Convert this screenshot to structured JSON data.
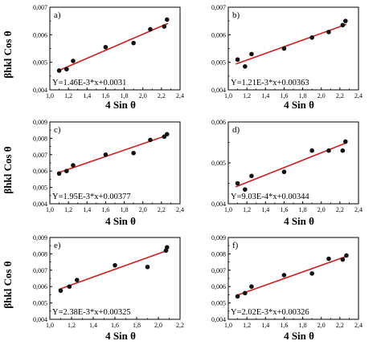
{
  "figure": {
    "ylabel": "βhkl Cos θ",
    "xlabel": "4 Sin θ"
  },
  "colors": {
    "fit_line": "#cc1f1f",
    "points": "#111111",
    "axes": "#000000"
  },
  "chart_data": [
    {
      "type": "scatter",
      "panel": "a)",
      "equation": "Y=1.46E-3*x+0.0031",
      "xlim": [
        1.0,
        2.4
      ],
      "ylim": [
        0.004,
        0.007
      ],
      "xticks": [
        "1,0",
        "1,2",
        "1,4",
        "1,6",
        "1,8",
        "2,0",
        "2,2",
        "2,4"
      ],
      "yticks": [
        "0,004",
        "0,005",
        "0,006",
        "0,007"
      ],
      "x": [
        1.1,
        1.18,
        1.25,
        1.6,
        1.9,
        2.08,
        2.23,
        2.26
      ],
      "y": [
        0.0047,
        0.00475,
        0.00505,
        0.00555,
        0.0057,
        0.0062,
        0.0063,
        0.00655
      ],
      "fit": {
        "slope": 0.00146,
        "intercept": 0.0031
      }
    },
    {
      "type": "scatter",
      "panel": "b)",
      "equation": "Y=1.21E-3*x+0.00363",
      "xlim": [
        1.0,
        2.4
      ],
      "ylim": [
        0.004,
        0.007
      ],
      "xticks": [
        "1,0",
        "1,2",
        "1,4",
        "1,6",
        "1,8",
        "2,0",
        "2,2",
        "2,4"
      ],
      "yticks": [
        "0,004",
        "0,005",
        "0,006",
        "0,007"
      ],
      "x": [
        1.1,
        1.18,
        1.25,
        1.6,
        1.9,
        2.08,
        2.23,
        2.26
      ],
      "y": [
        0.0051,
        0.00485,
        0.0053,
        0.0055,
        0.0059,
        0.0061,
        0.00635,
        0.0065
      ],
      "fit": {
        "slope": 0.00121,
        "intercept": 0.00363
      }
    },
    {
      "type": "scatter",
      "panel": "c)",
      "equation": "Y=1.95E-3*x+0.00377",
      "xlim": [
        1.0,
        2.4
      ],
      "ylim": [
        0.004,
        0.009
      ],
      "xticks": [
        "1,0",
        "1,2",
        "1,4",
        "1,6",
        "1,8",
        "2,0",
        "2,2",
        "2,4"
      ],
      "yticks": [
        "0,004",
        "0,005",
        "0,006",
        "0,007",
        "0,008",
        "0,009"
      ],
      "x": [
        1.1,
        1.18,
        1.25,
        1.6,
        1.9,
        2.08,
        2.23,
        2.26
      ],
      "y": [
        0.00585,
        0.006,
        0.00635,
        0.007,
        0.0071,
        0.0079,
        0.0081,
        0.00825
      ],
      "fit": {
        "slope": 0.00195,
        "intercept": 0.00377
      }
    },
    {
      "type": "scatter",
      "panel": "d)",
      "equation": "Y=9.03E-4*x+0.00344",
      "xlim": [
        1.0,
        2.4
      ],
      "ylim": [
        0.004,
        0.006
      ],
      "xticks": [
        "1,0",
        "1,2",
        "1,4",
        "1,6",
        "1,8",
        "2,0",
        "2,2",
        "2,4"
      ],
      "yticks": [
        "0,004",
        "0,005",
        "0,006"
      ],
      "x": [
        1.1,
        1.18,
        1.25,
        1.6,
        1.9,
        2.08,
        2.23,
        2.26
      ],
      "y": [
        0.0045,
        0.00435,
        0.00468,
        0.00478,
        0.0053,
        0.0053,
        0.0053,
        0.00552
      ],
      "fit": {
        "slope": 0.000903,
        "intercept": 0.00344
      }
    },
    {
      "type": "scatter",
      "panel": "e)",
      "equation": "Y=2.38E-3*x+0.00325",
      "xlim": [
        1.0,
        2.2
      ],
      "ylim": [
        0.004,
        0.009
      ],
      "xticks": [
        "1,0",
        "1,2",
        "1,4",
        "1,6",
        "1,8",
        "2,0",
        "2,2"
      ],
      "yticks": [
        "0,004",
        "0,005",
        "0,006",
        "0,007",
        "0,008",
        "0,009"
      ],
      "x": [
        1.1,
        1.18,
        1.25,
        1.6,
        1.9,
        2.07,
        2.08
      ],
      "y": [
        0.00575,
        0.006,
        0.0064,
        0.0073,
        0.0072,
        0.0082,
        0.0084
      ],
      "fit": {
        "slope": 0.00238,
        "intercept": 0.00325
      }
    },
    {
      "type": "scatter",
      "panel": "f)",
      "equation": "Y=2.02E-3*x+0.00326",
      "xlim": [
        1.0,
        2.4
      ],
      "ylim": [
        0.004,
        0.009
      ],
      "xticks": [
        "1,0",
        "1,2",
        "1,4",
        "1,6",
        "1,8",
        "2,0",
        "2,2",
        "2,4"
      ],
      "yticks": [
        "0,004",
        "0,005",
        "0,006",
        "0,007",
        "0,008",
        "0,009"
      ],
      "x": [
        1.1,
        1.18,
        1.25,
        1.6,
        1.9,
        2.08,
        2.23,
        2.27
      ],
      "y": [
        0.0054,
        0.0056,
        0.006,
        0.0067,
        0.0068,
        0.0077,
        0.00765,
        0.0079
      ],
      "fit": {
        "slope": 0.00202,
        "intercept": 0.00326
      }
    }
  ]
}
